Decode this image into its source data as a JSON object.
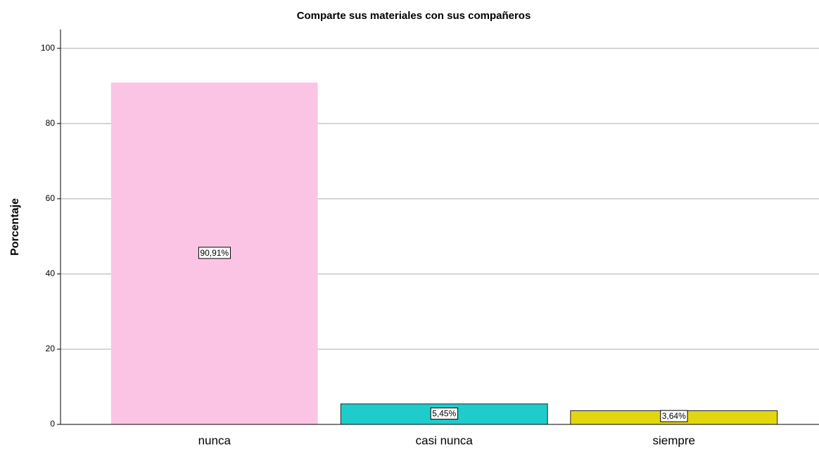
{
  "chart_data": {
    "type": "bar",
    "title": "Comparte sus materiales con sus compañeros",
    "y_label": "Porcentaje",
    "categories": [
      "nunca",
      "casi nunca",
      "siempre"
    ],
    "values": [
      90.91,
      5.45,
      3.64
    ],
    "value_labels": [
      "90,91%",
      "5,45%",
      "3,64%"
    ],
    "colors": [
      "#fcc4e4",
      "#1fcccc",
      "#e2d70f"
    ],
    "ylim": [
      0,
      105
    ],
    "yticks": [
      0,
      20,
      40,
      60,
      80,
      100
    ],
    "grid": true
  }
}
